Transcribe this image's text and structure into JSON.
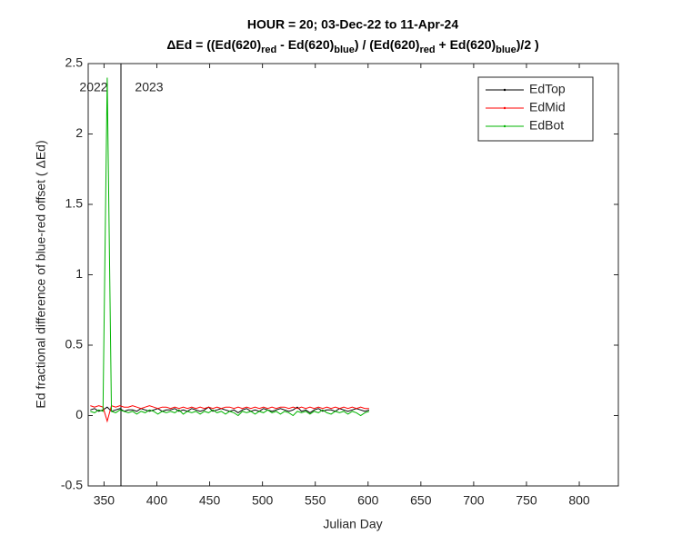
{
  "chart_data": {
    "type": "line",
    "title": "HOUR = 20; 03-Dec-22 to 11-Apr-24",
    "subtitle_parts": [
      "ΔEd = ((Ed(620)",
      "red",
      " - Ed(620)",
      "blue",
      ") / (Ed(620)",
      "red",
      " + Ed(620)",
      "blue",
      ")/2  )"
    ],
    "x_label": "Julian Day",
    "y_label": "Ed fractional difference of blue-red offset (  ΔEd)",
    "annotations": [
      "2022",
      "2023"
    ],
    "year_boundary": 366,
    "xlim": [
      335,
      837
    ],
    "xticks": [
      350,
      400,
      450,
      500,
      550,
      600,
      650,
      700,
      750,
      800
    ],
    "ylim": [
      -0.5,
      2.5
    ],
    "yticks": [
      -0.5,
      0,
      0.5,
      1,
      1.5,
      2,
      2.5
    ],
    "legend": "upper right",
    "x": [
      337,
      341,
      345,
      349,
      353,
      357,
      361,
      365,
      369,
      373,
      377,
      381,
      385,
      389,
      393,
      397,
      401,
      405,
      409,
      413,
      417,
      421,
      425,
      429,
      433,
      437,
      441,
      445,
      449,
      453,
      457,
      461,
      465,
      469,
      473,
      477,
      481,
      485,
      489,
      493,
      497,
      501,
      505,
      509,
      513,
      517,
      521,
      525,
      529,
      533,
      537,
      541,
      545,
      549,
      553,
      557,
      561,
      565,
      569,
      573,
      577,
      581,
      585,
      589,
      593,
      597,
      601
    ],
    "series": [
      {
        "name": "EdTop",
        "color": "#000000",
        "values": [
          0.04,
          0.05,
          0.03,
          0.04,
          0.06,
          0.03,
          0.04,
          0.05,
          0.03,
          0.04,
          0.04,
          0.03,
          0.05,
          0.04,
          0.03,
          0.04,
          0.05,
          0.03,
          0.04,
          0.04,
          0.05,
          0.03,
          0.04,
          0.03,
          0.05,
          0.04,
          0.03,
          0.04,
          0.06,
          0.03,
          0.04,
          0.05,
          0.04,
          0.03,
          0.04,
          0.02,
          0.04,
          0.05,
          0.03,
          0.04,
          0.03,
          0.05,
          0.04,
          0.03,
          0.04,
          0.05,
          0.04,
          0.03,
          0.04,
          0.06,
          0.03,
          0.04,
          0.02,
          0.04,
          0.05,
          0.03,
          0.04,
          0.04,
          0.03,
          0.05,
          0.04,
          0.03,
          0.04,
          0.05,
          0.04,
          0.03,
          0.04
        ]
      },
      {
        "name": "EdMid",
        "color": "#ff0000",
        "values": [
          0.07,
          0.06,
          0.07,
          0.06,
          -0.04,
          0.07,
          0.06,
          0.07,
          0.06,
          0.06,
          0.07,
          0.06,
          0.05,
          0.06,
          0.07,
          0.06,
          0.05,
          0.06,
          0.06,
          0.05,
          0.06,
          0.05,
          0.06,
          0.05,
          0.06,
          0.05,
          0.06,
          0.05,
          0.06,
          0.05,
          0.06,
          0.05,
          0.06,
          0.06,
          0.05,
          0.06,
          0.05,
          0.06,
          0.05,
          0.06,
          0.05,
          0.06,
          0.05,
          0.06,
          0.05,
          0.06,
          0.06,
          0.05,
          0.06,
          0.05,
          0.06,
          0.05,
          0.06,
          0.05,
          0.06,
          0.05,
          0.06,
          0.05,
          0.06,
          0.05,
          0.06,
          0.05,
          0.06,
          0.05,
          0.06,
          0.05,
          0.05
        ]
      },
      {
        "name": "EdBot",
        "color": "#00b400",
        "values": [
          0.03,
          0.02,
          0.04,
          0.03,
          2.4,
          0.03,
          0.02,
          0.04,
          0.03,
          0.02,
          0.03,
          0.01,
          0.03,
          0.02,
          0.04,
          0.03,
          0.01,
          0.03,
          0.02,
          0.03,
          0.02,
          0.04,
          0.01,
          0.03,
          0.02,
          0.03,
          0.01,
          0.03,
          0.02,
          0.04,
          0.02,
          0.03,
          0.01,
          0.03,
          0.02,
          0,
          0.03,
          0.02,
          0.03,
          0.01,
          0.03,
          0.02,
          0.04,
          0.02,
          0.03,
          0.01,
          0.03,
          0.02,
          0,
          0.03,
          0.02,
          0.03,
          0.01,
          0.03,
          0.02,
          0.04,
          0.02,
          0.01,
          0.03,
          0.02,
          0.03,
          0.01,
          0.03,
          0.02,
          0,
          0.02,
          0.03
        ]
      }
    ]
  }
}
